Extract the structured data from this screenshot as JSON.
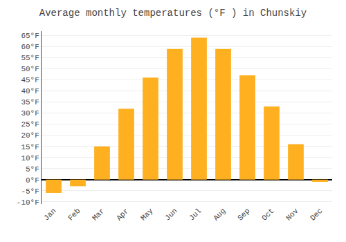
{
  "chart_data": {
    "type": "bar",
    "title": "Average monthly temperatures (°F ) in Chunskiy",
    "categories": [
      "Jan",
      "Feb",
      "Mar",
      "Apr",
      "May",
      "Jun",
      "Jul",
      "Aug",
      "Sep",
      "Oct",
      "Nov",
      "Dec"
    ],
    "values": [
      -6,
      -3,
      15,
      32,
      46,
      59,
      64,
      59,
      47,
      33,
      16,
      -1
    ],
    "color": "#FFB020",
    "ylim": [
      -11,
      67
    ],
    "yticks": [
      {
        "value": -10,
        "label": "-10°F"
      },
      {
        "value": -5,
        "label": "-5°F"
      },
      {
        "value": 0,
        "label": "0°F"
      },
      {
        "value": 5,
        "label": "5°F"
      },
      {
        "value": 10,
        "label": "10°F"
      },
      {
        "value": 15,
        "label": "15°F"
      },
      {
        "value": 20,
        "label": "20°F"
      },
      {
        "value": 25,
        "label": "25°F"
      },
      {
        "value": 30,
        "label": "30°F"
      },
      {
        "value": 35,
        "label": "35°F"
      },
      {
        "value": 40,
        "label": "40°F"
      },
      {
        "value": 45,
        "label": "45°F"
      },
      {
        "value": 50,
        "label": "50°F"
      },
      {
        "value": 55,
        "label": "55°F"
      },
      {
        "value": 60,
        "label": "60°F"
      },
      {
        "value": 65,
        "label": "65°F"
      }
    ],
    "grid": true
  }
}
